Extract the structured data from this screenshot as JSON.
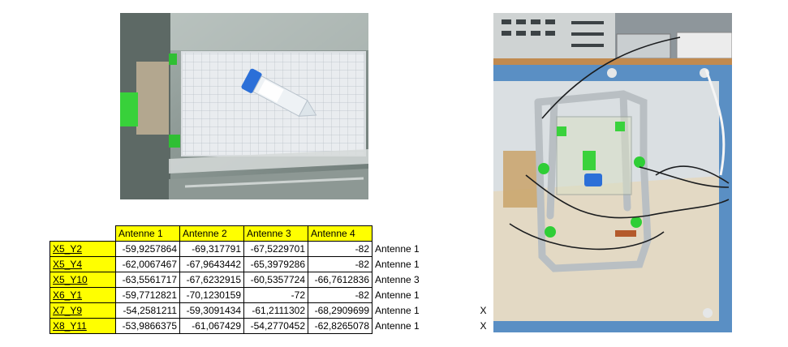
{
  "table": {
    "headers": [
      "Antenne 1",
      "Antenne 2",
      "Antenne 3",
      "Antenne 4"
    ],
    "rows": [
      {
        "label": "X5_Y2",
        "values": [
          "-59,9257864",
          "-69,317791",
          "-67,5229701",
          "-82"
        ],
        "best": "Antenne 1",
        "mark": ""
      },
      {
        "label": "X5_Y4",
        "values": [
          "-62,0067467",
          "-67,9643442",
          "-65,3979286",
          "-82"
        ],
        "best": "Antenne 1",
        "mark": ""
      },
      {
        "label": "X5_Y10",
        "values": [
          "-63,5561717",
          "-67,6232915",
          "-60,5357724",
          "-66,7612836"
        ],
        "best": "Antenne 3",
        "mark": ""
      },
      {
        "label": "X6_Y1",
        "values": [
          "-59,7712821",
          "-70,1230159",
          "-72",
          "-82"
        ],
        "best": "Antenne 1",
        "mark": ""
      },
      {
        "label": "X7_Y9",
        "values": [
          "-54,2581211",
          "-59,3091434",
          "-61,2111302",
          "-68,2909699"
        ],
        "best": "Antenne 1",
        "mark": "X"
      },
      {
        "label": "X8_Y11",
        "values": [
          "-53,9866375",
          "-61,067429",
          "-54,2770452",
          "-62,8265078"
        ],
        "best": "Antenne 1",
        "mark": "X"
      }
    ]
  },
  "colors": {
    "header_fill": "#ffff00",
    "label_fill": "#ffff00"
  }
}
